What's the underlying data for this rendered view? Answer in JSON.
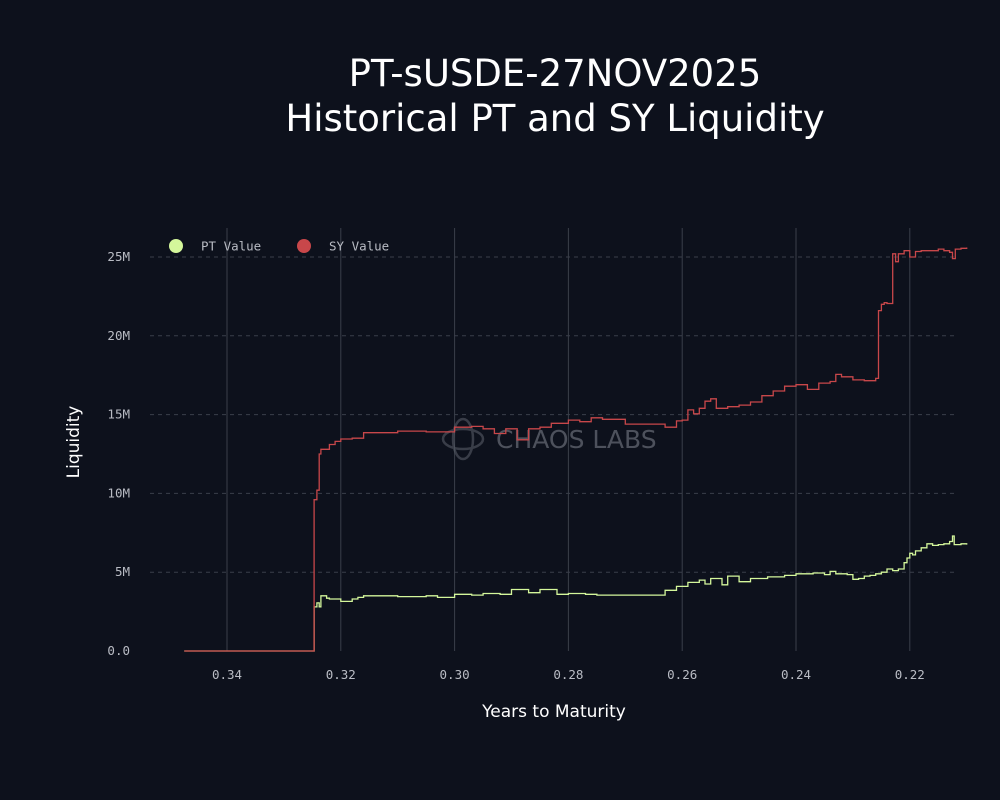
{
  "chart_data": {
    "type": "line",
    "title_line1": "PT-sUSDE-27NOV2025",
    "title_line2": "Historical PT and SY Liquidity",
    "xlabel": "Years to Maturity",
    "ylabel": "Liquidity",
    "x_reversed": true,
    "xlim": [
      0.3555,
      0.2125
    ],
    "ylim": [
      0,
      26000000
    ],
    "x_ticks": [
      0.34,
      0.32,
      0.3,
      0.28,
      0.26,
      0.24,
      0.22
    ],
    "x_tick_labels": [
      "0.34",
      "0.32",
      "0.30",
      "0.28",
      "0.26",
      "0.24",
      "0.22"
    ],
    "y_ticks": [
      0,
      5000000,
      10000000,
      15000000,
      20000000,
      25000000
    ],
    "y_tick_labels": [
      "0.0",
      "5M",
      "10M",
      "15M",
      "20M",
      "25M"
    ],
    "grid": {
      "x": true,
      "y": "dashed"
    },
    "legend_position": "top-left",
    "watermark": "CHAOS LABS",
    "series": [
      {
        "name": "PT Value",
        "color": "#d4f79b",
        "points": [
          [
            0.3475,
            0
          ],
          [
            0.3275,
            0
          ],
          [
            0.325,
            0
          ],
          [
            0.3247,
            2800000
          ],
          [
            0.3242,
            3050000
          ],
          [
            0.3238,
            2800000
          ],
          [
            0.3235,
            3500000
          ],
          [
            0.3225,
            3350000
          ],
          [
            0.322,
            3300000
          ],
          [
            0.32,
            3150000
          ],
          [
            0.318,
            3300000
          ],
          [
            0.317,
            3400000
          ],
          [
            0.316,
            3500000
          ],
          [
            0.31,
            3450000
          ],
          [
            0.305,
            3500000
          ],
          [
            0.303,
            3400000
          ],
          [
            0.3,
            3600000
          ],
          [
            0.297,
            3550000
          ],
          [
            0.295,
            3650000
          ],
          [
            0.292,
            3600000
          ],
          [
            0.29,
            3900000
          ],
          [
            0.287,
            3700000
          ],
          [
            0.285,
            3900000
          ],
          [
            0.282,
            3600000
          ],
          [
            0.28,
            3650000
          ],
          [
            0.277,
            3600000
          ],
          [
            0.275,
            3550000
          ],
          [
            0.27,
            3550000
          ],
          [
            0.265,
            3550000
          ],
          [
            0.263,
            3850000
          ],
          [
            0.261,
            4100000
          ],
          [
            0.259,
            4350000
          ],
          [
            0.257,
            4500000
          ],
          [
            0.256,
            4250000
          ],
          [
            0.255,
            4600000
          ],
          [
            0.253,
            4200000
          ],
          [
            0.252,
            4750000
          ],
          [
            0.25,
            4400000
          ],
          [
            0.248,
            4600000
          ],
          [
            0.245,
            4700000
          ],
          [
            0.242,
            4800000
          ],
          [
            0.24,
            4900000
          ],
          [
            0.237,
            4950000
          ],
          [
            0.235,
            4850000
          ],
          [
            0.234,
            5050000
          ],
          [
            0.233,
            4900000
          ],
          [
            0.231,
            4850000
          ],
          [
            0.23,
            4550000
          ],
          [
            0.229,
            4600000
          ],
          [
            0.228,
            4750000
          ],
          [
            0.227,
            4800000
          ],
          [
            0.226,
            4900000
          ],
          [
            0.225,
            5000000
          ],
          [
            0.224,
            5200000
          ],
          [
            0.223,
            5100000
          ],
          [
            0.222,
            5200000
          ],
          [
            0.221,
            5600000
          ],
          [
            0.2205,
            5900000
          ],
          [
            0.22,
            6200000
          ],
          [
            0.2195,
            6100000
          ],
          [
            0.219,
            6350000
          ],
          [
            0.218,
            6550000
          ],
          [
            0.217,
            6800000
          ],
          [
            0.216,
            6700000
          ],
          [
            0.215,
            6750000
          ],
          [
            0.214,
            6800000
          ],
          [
            0.213,
            6950000
          ],
          [
            0.2125,
            7300000
          ],
          [
            0.2122,
            6750000
          ],
          [
            0.211,
            6800000
          ],
          [
            0.21,
            6750000
          ]
        ]
      },
      {
        "name": "SY Value",
        "color": "#c8474a",
        "points": [
          [
            0.3475,
            0
          ],
          [
            0.3275,
            0
          ],
          [
            0.325,
            0
          ],
          [
            0.3247,
            9600000
          ],
          [
            0.3242,
            10200000
          ],
          [
            0.3238,
            12500000
          ],
          [
            0.3235,
            12800000
          ],
          [
            0.322,
            13100000
          ],
          [
            0.321,
            13300000
          ],
          [
            0.32,
            13450000
          ],
          [
            0.318,
            13500000
          ],
          [
            0.316,
            13850000
          ],
          [
            0.31,
            13950000
          ],
          [
            0.305,
            13900000
          ],
          [
            0.3,
            14200000
          ],
          [
            0.297,
            14250000
          ],
          [
            0.295,
            14100000
          ],
          [
            0.293,
            13800000
          ],
          [
            0.291,
            14100000
          ],
          [
            0.289,
            13400000
          ],
          [
            0.287,
            14100000
          ],
          [
            0.285,
            14200000
          ],
          [
            0.283,
            14450000
          ],
          [
            0.28,
            14650000
          ],
          [
            0.278,
            14550000
          ],
          [
            0.276,
            14800000
          ],
          [
            0.274,
            14700000
          ],
          [
            0.27,
            14400000
          ],
          [
            0.265,
            14400000
          ],
          [
            0.263,
            14200000
          ],
          [
            0.261,
            14600000
          ],
          [
            0.26,
            14650000
          ],
          [
            0.259,
            15300000
          ],
          [
            0.258,
            15050000
          ],
          [
            0.257,
            15400000
          ],
          [
            0.256,
            15850000
          ],
          [
            0.255,
            16000000
          ],
          [
            0.254,
            15400000
          ],
          [
            0.252,
            15500000
          ],
          [
            0.25,
            15600000
          ],
          [
            0.248,
            15800000
          ],
          [
            0.246,
            16200000
          ],
          [
            0.244,
            16500000
          ],
          [
            0.242,
            16800000
          ],
          [
            0.24,
            16900000
          ],
          [
            0.238,
            16600000
          ],
          [
            0.236,
            17000000
          ],
          [
            0.234,
            17100000
          ],
          [
            0.233,
            17550000
          ],
          [
            0.232,
            17400000
          ],
          [
            0.23,
            17200000
          ],
          [
            0.228,
            17150000
          ],
          [
            0.226,
            17300000
          ],
          [
            0.2255,
            21600000
          ],
          [
            0.225,
            22000000
          ],
          [
            0.2245,
            22100000
          ],
          [
            0.224,
            22050000
          ],
          [
            0.223,
            25200000
          ],
          [
            0.2225,
            24700000
          ],
          [
            0.222,
            25200000
          ],
          [
            0.221,
            25400000
          ],
          [
            0.22,
            25000000
          ],
          [
            0.219,
            25350000
          ],
          [
            0.218,
            25400000
          ],
          [
            0.217,
            25400000
          ],
          [
            0.215,
            25500000
          ],
          [
            0.214,
            25400000
          ],
          [
            0.213,
            25300000
          ],
          [
            0.2125,
            24900000
          ],
          [
            0.212,
            25500000
          ],
          [
            0.211,
            25550000
          ],
          [
            0.21,
            25600000
          ]
        ]
      }
    ]
  }
}
